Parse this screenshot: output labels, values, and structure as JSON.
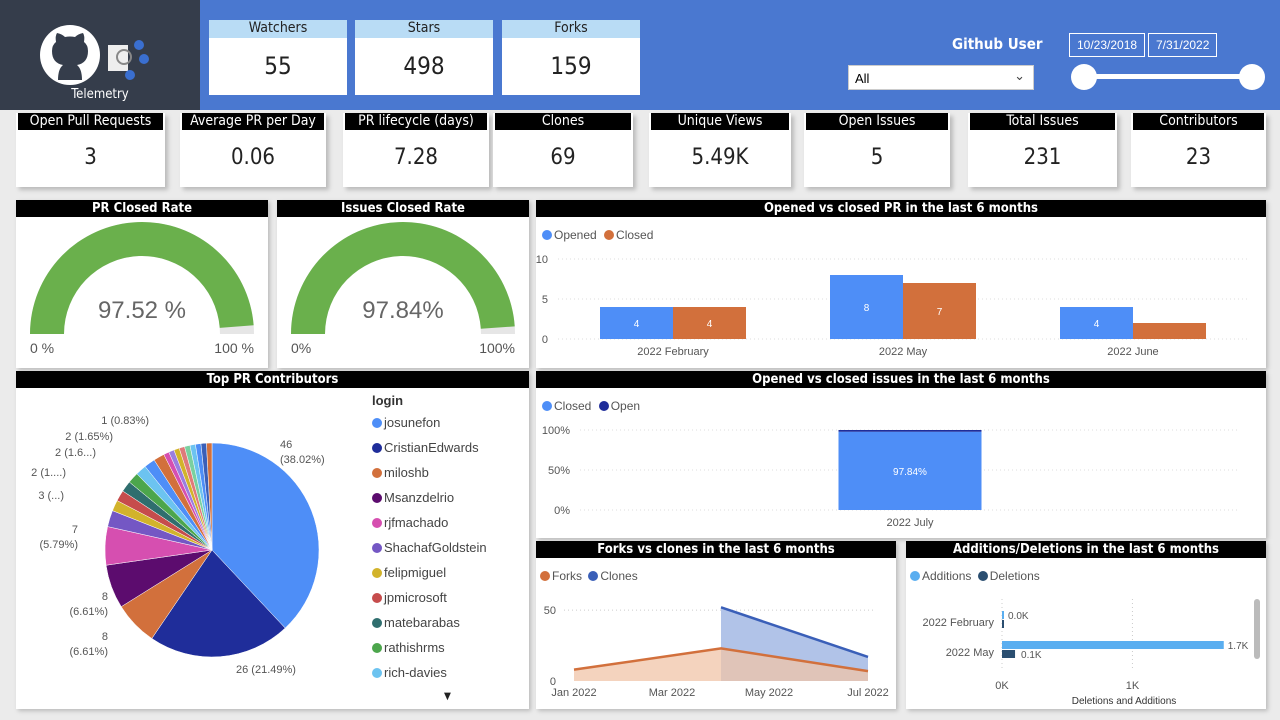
{
  "logo": {
    "label": "Telemetry"
  },
  "top_cards": [
    {
      "label": "Watchers",
      "value": "55"
    },
    {
      "label": "Stars",
      "value": "498"
    },
    {
      "label": "Forks",
      "value": "159"
    }
  ],
  "filter": {
    "label": "Github User",
    "selected": "All",
    "start_date": "10/23/2018",
    "end_date": "7/31/2022",
    "slider_range": [
      0,
      1
    ]
  },
  "kpis": [
    {
      "label": "Open Pull Requests",
      "value": "3"
    },
    {
      "label": "Average PR per Day",
      "value": "0.06"
    },
    {
      "label": "PR lifecycle (days)",
      "value": "7.28"
    },
    {
      "label": "Clones",
      "value": "69"
    },
    {
      "label": "Unique Views",
      "value": "5.49K"
    },
    {
      "label": "Open Issues",
      "value": "5"
    },
    {
      "label": "Total Issues",
      "value": "231"
    },
    {
      "label": "Contributors",
      "value": "23"
    }
  ],
  "colors": {
    "banner": "#4a78d0",
    "gauge": "#6ab04c",
    "opened": "#4e8ef7",
    "closed": "#d2703c",
    "open_issue": "#1f2d9a",
    "forks": "#d2703c",
    "clones": "#3a5fb8",
    "additions": "#5aaef0",
    "deletions": "#2a4e70"
  },
  "chart_data": [
    {
      "type": "gauge",
      "title": "PR Closed Rate",
      "value": 97.52,
      "value_label": "97.52 %",
      "min_label": "0 %",
      "max_label": "100 %"
    },
    {
      "type": "gauge",
      "title": "Issues Closed Rate",
      "value": 97.84,
      "value_label": "97.84%",
      "min_label": "0%",
      "max_label": "100%"
    },
    {
      "type": "bar",
      "title": "Opened vs closed PR in the last 6 months",
      "categories": [
        "2022 February",
        "2022 May",
        "2022 June"
      ],
      "series": [
        {
          "name": "Opened",
          "values": [
            4,
            8,
            4
          ],
          "labels": [
            "4",
            "8",
            "4"
          ]
        },
        {
          "name": "Closed",
          "values": [
            4,
            7,
            2
          ],
          "labels": [
            "4",
            "7",
            ""
          ]
        }
      ],
      "yticks": [
        "0",
        "5",
        "10"
      ],
      "ylim": [
        0,
        10
      ]
    },
    {
      "type": "pie",
      "title": "Top PR Contributors",
      "legend_title": "login",
      "legend": [
        "josunefon",
        "CristianEdwards",
        "miloshb",
        "Msanzdelrio",
        "rjfmachado",
        "ShachafGoldstein",
        "felipmiguel",
        "jpmicrosoft",
        "matebarabas",
        "rathishrms",
        "rich-davies"
      ],
      "values": [
        46,
        26,
        8,
        8,
        7,
        3,
        2,
        2,
        2,
        2,
        2,
        2,
        2,
        1,
        1,
        1,
        1,
        1,
        1,
        1,
        1,
        1
      ],
      "slice_colors": [
        "#4e8ef7",
        "#1f2d9a",
        "#d2703c",
        "#5c0c6e",
        "#d64fb0",
        "#7457c4",
        "#d2b32b",
        "#c64c4c",
        "#2f6e6e",
        "#4ca64c",
        "#6cc3f0",
        "#4e8ef7",
        "#d2703c",
        "#d64fb0",
        "#9a7ee0",
        "#d2b32b",
        "#e07a7a",
        "#7ad0a0",
        "#6cc3f0",
        "#4e8ef7",
        "#3a5fb8",
        "#d2703c"
      ],
      "data_labels": [
        {
          "line1": "46",
          "line2": "(38.02%)"
        },
        {
          "line1": "26 (21.49%)"
        },
        {
          "line1": "8",
          "line2": "(6.61%)"
        },
        {
          "line1": "8",
          "line2": "(6.61%)"
        },
        {
          "line1": "7",
          "line2": "(5.79%)"
        },
        {
          "line1": "3 (...)"
        },
        {
          "line1": "2 (1....)"
        },
        {
          "line1": "2 (1.6...)"
        },
        {
          "line1": "2 (1.65%)"
        },
        {
          "line1": "1 (0.83%)"
        }
      ]
    },
    {
      "type": "bar",
      "title": "Opened vs closed issues in the last 6 months",
      "categories": [
        "2022 July"
      ],
      "series": [
        {
          "name": "Closed",
          "values": [
            97.84
          ],
          "labels": [
            "97.84%"
          ]
        },
        {
          "name": "Open",
          "values": [
            2.16
          ]
        }
      ],
      "yticks": [
        "0%",
        "50%",
        "100%"
      ],
      "ylim": [
        0,
        100
      ]
    },
    {
      "type": "area",
      "title": "Forks vs clones in the last 6 months",
      "xticks": [
        "Jan 2022",
        "Mar 2022",
        "May 2022",
        "Jul 2022"
      ],
      "yticks": [
        "0",
        "50"
      ],
      "series": [
        {
          "name": "Forks",
          "x": [
            "2022-01",
            "2022-04",
            "2022-07"
          ],
          "values": [
            8,
            23,
            7
          ]
        },
        {
          "name": "Clones",
          "x": [
            "2022-04",
            "2022-07"
          ],
          "values": [
            52,
            17
          ]
        }
      ],
      "ylim": [
        0,
        60
      ]
    },
    {
      "type": "bar",
      "orientation": "horizontal",
      "title": "Additions/Deletions in the last 6 months",
      "categories": [
        "2022 February",
        "2022 May"
      ],
      "series": [
        {
          "name": "Additions",
          "values": [
            0.01,
            1.7
          ],
          "labels": [
            "0.0K",
            "1.7K"
          ]
        },
        {
          "name": "Deletions",
          "values": [
            0.003,
            0.1
          ],
          "labels": [
            "",
            "0.1K"
          ]
        }
      ],
      "xticks": [
        "0K",
        "1K"
      ],
      "xlabel": "Deletions and Additions",
      "xlim": [
        0,
        1.8
      ]
    }
  ]
}
